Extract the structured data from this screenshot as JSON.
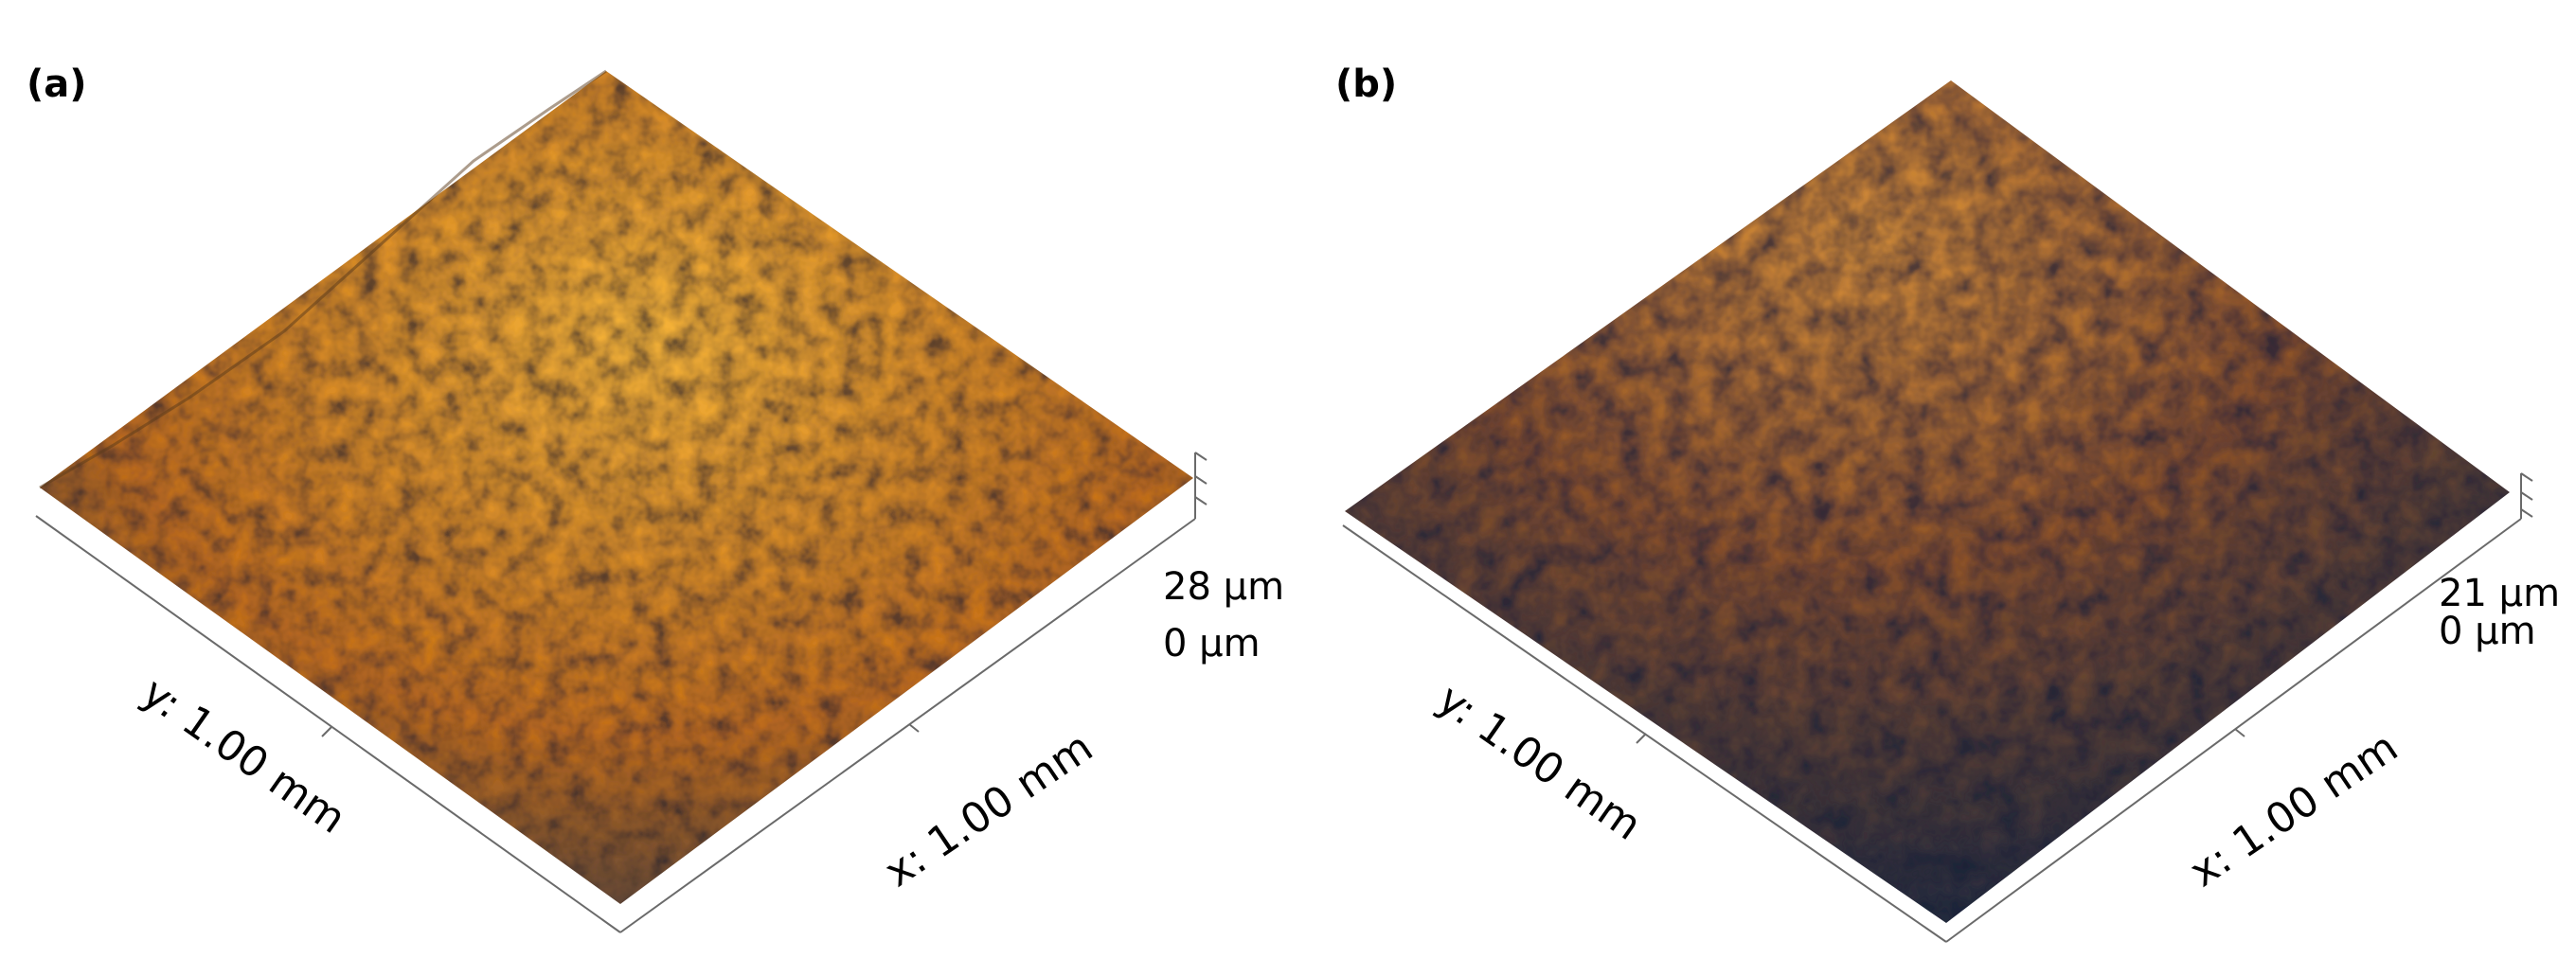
{
  "panels": [
    {
      "label": "(a)",
      "x_axis": "x: 1.00 mm",
      "y_axis": "y: 1.00 mm",
      "z_max": "28 µm",
      "z_min": "0 µm",
      "colors": {
        "bright": "#f6b43a",
        "mid": "#c6701a",
        "dark": "#35384a"
      }
    },
    {
      "label": "(b)",
      "x_axis": "x: 1.00 mm",
      "y_axis": "y: 1.00 mm",
      "z_max": "21 µm",
      "z_min": "0 µm",
      "colors": {
        "bright": "#e89a3a",
        "mid": "#9a5a26",
        "dark": "#1e2a44"
      }
    }
  ]
}
